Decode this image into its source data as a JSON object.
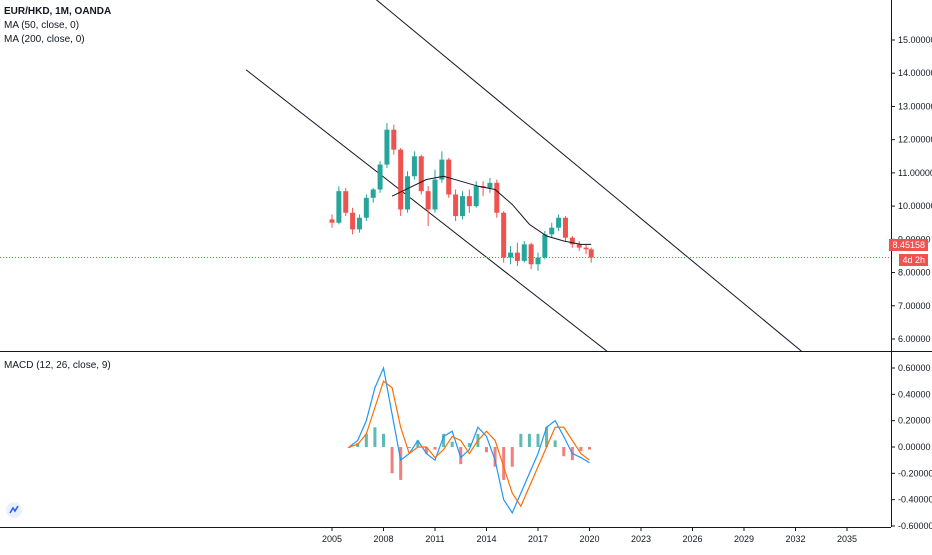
{
  "legend": {
    "symbol": "EUR/HKD, 1M, OANDA",
    "ma50": "MA (50, close, 0)",
    "ma200": "MA (200, close, 0)",
    "macd": "MACD (12, 26, close, 9)"
  },
  "price_label": "8.45158",
  "countdown_label": "4d 2h",
  "colors": {
    "up": "#26a69a",
    "down": "#ef5350",
    "ma": "#131722",
    "macd_line": "#2196f3",
    "signal_line": "#ff6d00",
    "trendline": "#131722",
    "price_line": "#ef5350"
  },
  "chart_data": {
    "type": "line",
    "x_ticks": [
      "2005",
      "2008",
      "2011",
      "2014",
      "2017",
      "2020",
      "2023",
      "2026",
      "2029",
      "2032",
      "2035"
    ],
    "price_panel": {
      "y_ticks": [
        "6.00000",
        "7.00000",
        "8.00000",
        "9.00000",
        "10.00000",
        "11.00000",
        "12.00000",
        "13.00000",
        "14.00000",
        "15.00000"
      ],
      "ylim": [
        5.8,
        15.0
      ],
      "current_price": 8.45158,
      "candles": [
        {
          "t": 2005.0,
          "o": 9.6,
          "h": 9.75,
          "l": 9.35,
          "c": 9.5
        },
        {
          "t": 2005.4,
          "o": 9.5,
          "h": 10.6,
          "l": 9.45,
          "c": 10.45
        },
        {
          "t": 2005.8,
          "o": 10.45,
          "h": 10.55,
          "l": 9.7,
          "c": 9.8
        },
        {
          "t": 2006.2,
          "o": 9.8,
          "h": 9.95,
          "l": 9.15,
          "c": 9.3
        },
        {
          "t": 2006.6,
          "o": 9.3,
          "h": 9.75,
          "l": 9.2,
          "c": 9.65
        },
        {
          "t": 2007.0,
          "o": 9.65,
          "h": 10.35,
          "l": 9.55,
          "c": 10.25
        },
        {
          "t": 2007.4,
          "o": 10.25,
          "h": 10.55,
          "l": 10.1,
          "c": 10.5
        },
        {
          "t": 2007.8,
          "o": 10.5,
          "h": 11.35,
          "l": 10.4,
          "c": 11.25
        },
        {
          "t": 2008.2,
          "o": 11.25,
          "h": 12.5,
          "l": 11.15,
          "c": 12.3
        },
        {
          "t": 2008.6,
          "o": 12.3,
          "h": 12.45,
          "l": 11.55,
          "c": 11.7
        },
        {
          "t": 2009.0,
          "o": 11.7,
          "h": 11.75,
          "l": 9.7,
          "c": 9.9
        },
        {
          "t": 2009.4,
          "o": 9.9,
          "h": 11.05,
          "l": 9.8,
          "c": 10.9
        },
        {
          "t": 2009.8,
          "o": 10.9,
          "h": 11.65,
          "l": 10.8,
          "c": 11.5
        },
        {
          "t": 2010.2,
          "o": 11.5,
          "h": 11.55,
          "l": 10.35,
          "c": 10.45
        },
        {
          "t": 2010.6,
          "o": 10.45,
          "h": 10.6,
          "l": 9.4,
          "c": 9.9
        },
        {
          "t": 2011.0,
          "o": 9.9,
          "h": 11.1,
          "l": 9.8,
          "c": 10.8
        },
        {
          "t": 2011.4,
          "o": 10.8,
          "h": 11.65,
          "l": 10.7,
          "c": 11.4
        },
        {
          "t": 2011.8,
          "o": 11.4,
          "h": 11.45,
          "l": 10.25,
          "c": 10.35
        },
        {
          "t": 2012.2,
          "o": 10.35,
          "h": 10.5,
          "l": 9.55,
          "c": 9.7
        },
        {
          "t": 2012.6,
          "o": 9.7,
          "h": 10.45,
          "l": 9.6,
          "c": 10.3
        },
        {
          "t": 2013.0,
          "o": 10.3,
          "h": 10.5,
          "l": 9.8,
          "c": 10.0
        },
        {
          "t": 2013.4,
          "o": 10.0,
          "h": 10.75,
          "l": 9.95,
          "c": 10.6
        },
        {
          "t": 2013.8,
          "o": 10.6,
          "h": 10.75,
          "l": 10.3,
          "c": 10.55
        },
        {
          "t": 2014.2,
          "o": 10.55,
          "h": 10.85,
          "l": 10.4,
          "c": 10.7
        },
        {
          "t": 2014.6,
          "o": 10.7,
          "h": 10.8,
          "l": 9.65,
          "c": 9.8
        },
        {
          "t": 2015.0,
          "o": 9.8,
          "h": 9.85,
          "l": 8.3,
          "c": 8.45
        },
        {
          "t": 2015.4,
          "o": 8.45,
          "h": 8.8,
          "l": 8.25,
          "c": 8.6
        },
        {
          "t": 2015.8,
          "o": 8.6,
          "h": 8.9,
          "l": 8.2,
          "c": 8.35
        },
        {
          "t": 2016.2,
          "o": 8.35,
          "h": 8.95,
          "l": 8.3,
          "c": 8.85
        },
        {
          "t": 2016.6,
          "o": 8.85,
          "h": 8.9,
          "l": 8.1,
          "c": 8.25
        },
        {
          "t": 2017.0,
          "o": 8.25,
          "h": 8.6,
          "l": 8.05,
          "c": 8.45
        },
        {
          "t": 2017.4,
          "o": 8.45,
          "h": 9.25,
          "l": 8.4,
          "c": 9.15
        },
        {
          "t": 2017.8,
          "o": 9.15,
          "h": 9.5,
          "l": 9.05,
          "c": 9.35
        },
        {
          "t": 2018.2,
          "o": 9.35,
          "h": 9.75,
          "l": 9.25,
          "c": 9.65
        },
        {
          "t": 2018.6,
          "o": 9.65,
          "h": 9.7,
          "l": 8.95,
          "c": 9.05
        },
        {
          "t": 2019.0,
          "o": 9.05,
          "h": 9.1,
          "l": 8.75,
          "c": 8.85
        },
        {
          "t": 2019.4,
          "o": 8.85,
          "h": 8.95,
          "l": 8.65,
          "c": 8.75
        },
        {
          "t": 2019.8,
          "o": 8.75,
          "h": 8.85,
          "l": 8.55,
          "c": 8.7
        },
        {
          "t": 2020.1,
          "o": 8.7,
          "h": 8.75,
          "l": 8.3,
          "c": 8.45
        }
      ],
      "ma50": {
        "x": [
          2008.5,
          2009.5,
          2010.5,
          2011.5,
          2012.5,
          2013.5,
          2014.5,
          2015.5,
          2016.5,
          2017.5,
          2018.5,
          2019.5,
          2020.1
        ],
        "y": [
          10.3,
          10.55,
          10.8,
          10.9,
          10.75,
          10.6,
          10.5,
          10.05,
          9.45,
          9.1,
          8.95,
          8.85,
          8.85
        ]
      },
      "trendlines": [
        {
          "x1": 2000.0,
          "y1": 14.1,
          "x2": 2035.0,
          "y2": 0.0
        },
        {
          "x1": 2000.0,
          "y1": 19.45,
          "x2": 2035.0,
          "y2": 4.5
        }
      ]
    },
    "macd_panel": {
      "y_ticks": [
        "-0.60000",
        "-0.40000",
        "-0.20000",
        "0.00000",
        "0.20000",
        "0.40000",
        "0.60000"
      ],
      "ylim": [
        -0.6,
        0.65
      ],
      "x": [
        2006.0,
        2006.5,
        2007.0,
        2007.5,
        2008.0,
        2008.5,
        2009.0,
        2009.5,
        2010.0,
        2010.5,
        2011.0,
        2011.5,
        2012.0,
        2012.5,
        2013.0,
        2013.5,
        2014.0,
        2014.5,
        2015.0,
        2015.5,
        2016.0,
        2016.5,
        2017.0,
        2017.5,
        2018.0,
        2018.5,
        2019.0,
        2019.5,
        2020.0
      ],
      "macd": [
        0.0,
        0.05,
        0.2,
        0.45,
        0.6,
        0.25,
        -0.1,
        -0.05,
        0.05,
        -0.05,
        -0.1,
        0.08,
        0.12,
        -0.08,
        -0.02,
        0.15,
        0.08,
        -0.1,
        -0.4,
        -0.5,
        -0.35,
        -0.2,
        -0.05,
        0.15,
        0.2,
        0.08,
        -0.05,
        -0.08,
        -0.12
      ],
      "signal": [
        0.0,
        0.02,
        0.1,
        0.3,
        0.5,
        0.45,
        0.15,
        -0.05,
        0.0,
        0.0,
        -0.08,
        -0.02,
        0.08,
        0.05,
        -0.05,
        0.05,
        0.12,
        0.05,
        -0.15,
        -0.35,
        -0.45,
        -0.3,
        -0.15,
        0.0,
        0.15,
        0.15,
        0.05,
        -0.05,
        -0.1
      ],
      "histogram": [
        0.0,
        0.03,
        0.1,
        0.15,
        0.1,
        -0.2,
        -0.25,
        0.0,
        0.05,
        -0.05,
        -0.02,
        0.1,
        0.04,
        -0.13,
        0.03,
        0.1,
        -0.04,
        -0.15,
        -0.25,
        -0.15,
        0.1,
        0.1,
        0.1,
        0.15,
        0.05,
        -0.07,
        -0.1,
        -0.03,
        -0.02
      ]
    }
  }
}
